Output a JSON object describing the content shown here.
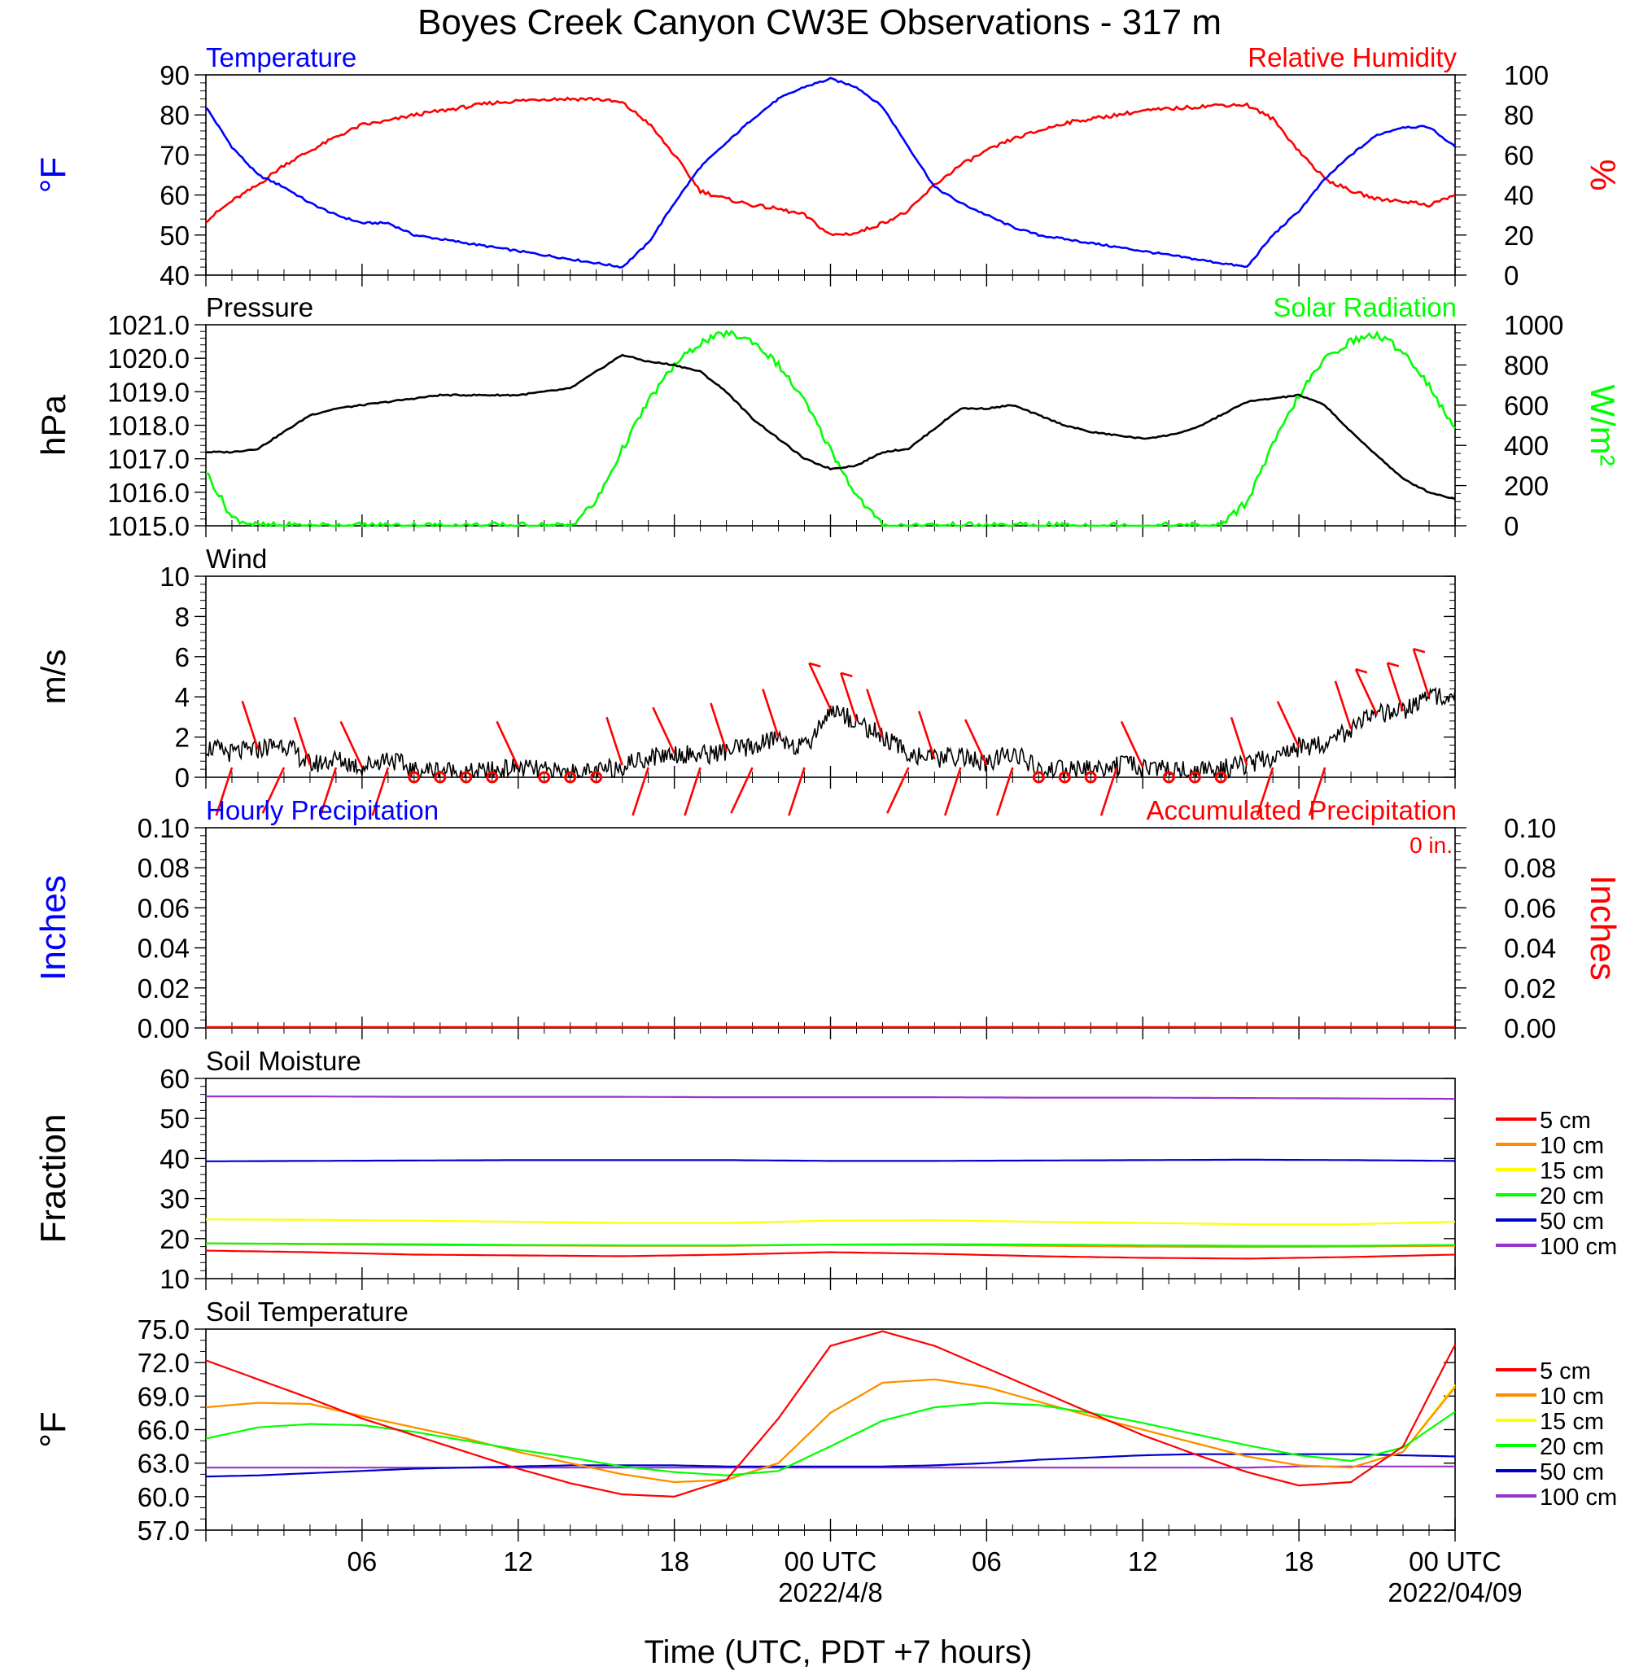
{
  "title": "Boyes Creek Canyon CW3E Observations - 317 m",
  "xlabel": "Time (UTC, PDT +7 hours)",
  "x_ticks": [
    "06",
    "12",
    "18",
    "00 UTC",
    "06",
    "12",
    "18",
    "00 UTC"
  ],
  "x_dates": [
    "2022/4/8",
    "2022/04/09"
  ],
  "colors": {
    "temperature": "#0000ff",
    "humidity": "#ff0000",
    "pressure": "#000000",
    "solar": "#00ff00",
    "wind": "#000000",
    "barbs": "#ff0000"
  },
  "chart_data": [
    {
      "type": "line",
      "panel": "temperature-humidity",
      "left_title": "Temperature",
      "right_title": "Relative Humidity",
      "left_unit": "°F",
      "right_unit": "%",
      "ylim_left": [
        40,
        90
      ],
      "ylim_right": [
        0,
        100
      ],
      "yticks_left": [
        "90",
        "80",
        "70",
        "60",
        "50",
        "40"
      ],
      "yticks_right": [
        "100",
        "80",
        "60",
        "40",
        "20",
        "0"
      ],
      "x_hours": [
        0,
        1,
        2,
        3,
        4,
        5,
        6,
        7,
        8,
        9,
        10,
        11,
        12,
        13,
        14,
        15,
        16,
        17,
        18,
        19,
        20,
        21,
        22,
        23,
        24,
        25,
        26,
        27,
        28,
        29,
        30,
        31,
        32,
        33,
        34,
        35,
        36,
        37,
        38,
        39,
        40,
        41,
        42,
        43,
        44,
        45,
        46,
        47,
        48
      ],
      "series": [
        {
          "name": "Temperature",
          "values": [
            82,
            72,
            65,
            62,
            58,
            55,
            53,
            53,
            50,
            49,
            48,
            47,
            46,
            45,
            44,
            43,
            42,
            48,
            58,
            67,
            73,
            79,
            84,
            87,
            89,
            87,
            82,
            72,
            62,
            58,
            55,
            52,
            50,
            49,
            48,
            47,
            46,
            45,
            44,
            43,
            42,
            50,
            56,
            64,
            70,
            75,
            77,
            77,
            72
          ]
        },
        {
          "name": "Relative Humidity",
          "values": [
            27,
            37,
            45,
            55,
            62,
            69,
            75,
            77,
            80,
            82,
            84,
            86,
            87,
            88,
            88,
            88,
            86,
            76,
            60,
            42,
            38,
            35,
            33,
            30,
            20,
            21,
            26,
            32,
            45,
            55,
            62,
            68,
            72,
            76,
            78,
            80,
            82,
            83,
            84,
            85,
            85,
            78,
            62,
            48,
            42,
            38,
            37,
            35,
            40
          ]
        }
      ]
    },
    {
      "type": "line",
      "panel": "pressure-solar",
      "left_title": "Pressure",
      "right_title": "Solar Radiation",
      "left_unit": "hPa",
      "right_unit": "W/m²",
      "ylim_left": [
        1015.0,
        1021.0
      ],
      "ylim_right": [
        0,
        1000
      ],
      "yticks_left": [
        "1021.0",
        "1020.0",
        "1019.0",
        "1018.0",
        "1017.0",
        "1016.0",
        "1015.0"
      ],
      "yticks_right": [
        "1000",
        "800",
        "600",
        "400",
        "200",
        "0"
      ],
      "x_hours": [
        0,
        1,
        2,
        3,
        4,
        5,
        6,
        7,
        8,
        9,
        10,
        11,
        12,
        13,
        14,
        15,
        16,
        17,
        18,
        19,
        20,
        21,
        22,
        23,
        24,
        25,
        26,
        27,
        28,
        29,
        30,
        31,
        32,
        33,
        34,
        35,
        36,
        37,
        38,
        39,
        40,
        41,
        42,
        43,
        44,
        45,
        46,
        47,
        48
      ],
      "series": [
        {
          "name": "Pressure",
          "values": [
            1017.2,
            1017.2,
            1017.3,
            1017.8,
            1018.3,
            1018.5,
            1018.6,
            1018.7,
            1018.8,
            1018.9,
            1018.9,
            1018.9,
            1018.9,
            1019.0,
            1019.1,
            1019.6,
            1020.1,
            1019.9,
            1019.8,
            1019.6,
            1019.0,
            1018.2,
            1017.6,
            1017.0,
            1016.7,
            1016.8,
            1017.2,
            1017.3,
            1017.9,
            1018.5,
            1018.5,
            1018.6,
            1018.3,
            1018.0,
            1017.8,
            1017.7,
            1017.6,
            1017.7,
            1017.9,
            1018.3,
            1018.7,
            1018.8,
            1018.9,
            1018.6,
            1017.8,
            1017.1,
            1016.4,
            1016.0,
            1015.8
          ]
        },
        {
          "name": "Solar Radiation",
          "values": [
            270,
            40,
            0,
            0,
            0,
            0,
            0,
            0,
            0,
            0,
            0,
            0,
            0,
            0,
            0,
            120,
            380,
            620,
            800,
            910,
            960,
            920,
            800,
            620,
            380,
            150,
            0,
            0,
            0,
            0,
            0,
            0,
            0,
            0,
            0,
            0,
            0,
            0,
            0,
            0,
            120,
            400,
            650,
            830,
            920,
            950,
            870,
            700,
            470
          ]
        }
      ]
    },
    {
      "type": "line",
      "panel": "wind",
      "left_title": "Wind",
      "left_unit": "m/s",
      "ylim": [
        0,
        10
      ],
      "yticks": [
        "10",
        "8",
        "6",
        "4",
        "2",
        "0"
      ],
      "x_hours": [
        0,
        1,
        2,
        3,
        4,
        5,
        6,
        7,
        8,
        9,
        10,
        11,
        12,
        13,
        14,
        15,
        16,
        17,
        18,
        19,
        20,
        21,
        22,
        23,
        24,
        25,
        26,
        27,
        28,
        29,
        30,
        31,
        32,
        33,
        34,
        35,
        36,
        37,
        38,
        39,
        40,
        41,
        42,
        43,
        44,
        45,
        46,
        47,
        48
      ],
      "series": [
        {
          "name": "Wind speed",
          "values": [
            1.5,
            1.2,
            1.4,
            1.7,
            0.6,
            0.9,
            0.5,
            1.0,
            0.3,
            0.4,
            0.2,
            0.3,
            0.5,
            0.3,
            0.2,
            0.2,
            0.6,
            1.0,
            1.2,
            1.1,
            1.3,
            1.5,
            2.0,
            1.4,
            3.4,
            2.8,
            2.0,
            1.2,
            0.9,
            1.1,
            0.6,
            1.3,
            0.3,
            0.4,
            0.4,
            0.6,
            0.5,
            0.4,
            0.3,
            0.4,
            0.6,
            1.0,
            1.5,
            1.7,
            2.4,
            3.1,
            3.3,
            4.0,
            4.2
          ]
        }
      ]
    },
    {
      "type": "line",
      "panel": "precipitation",
      "left_title": "Hourly Precipitation",
      "right_title": "Accumulated Precipitation",
      "annotation": "0 in.",
      "left_unit": "Inches",
      "right_unit": "Inches",
      "ylim": [
        0,
        0.1
      ],
      "yticks": [
        "0.10",
        "0.08",
        "0.06",
        "0.04",
        "0.02",
        "0.00"
      ],
      "series": [
        {
          "name": "Hourly Precipitation",
          "values": [
            0,
            0
          ]
        },
        {
          "name": "Accumulated Precipitation",
          "values": [
            0,
            0
          ]
        }
      ]
    },
    {
      "type": "line",
      "panel": "soil-moisture",
      "left_title": "Soil Moisture",
      "left_unit": "Fraction",
      "ylim": [
        10,
        60
      ],
      "yticks": [
        "60",
        "50",
        "40",
        "30",
        "20",
        "10"
      ],
      "x_hours": [
        0,
        4,
        8,
        12,
        16,
        20,
        24,
        28,
        32,
        36,
        40,
        44,
        48
      ],
      "series": [
        {
          "name": "5 cm",
          "color": "#ff0000",
          "values": [
            17.0,
            16.6,
            16.0,
            15.8,
            15.6,
            16.0,
            16.6,
            16.2,
            15.6,
            15.2,
            15.0,
            15.4,
            16.0
          ]
        },
        {
          "name": "10 cm",
          "color": "#ff8c00",
          "values": [
            18.8,
            18.6,
            18.4,
            18.3,
            18.2,
            18.2,
            18.5,
            18.4,
            18.2,
            18.0,
            17.9,
            18.0,
            18.2
          ]
        },
        {
          "name": "15 cm",
          "color": "#ffff00",
          "values": [
            24.8,
            24.7,
            24.5,
            24.2,
            23.9,
            23.9,
            24.5,
            24.6,
            24.2,
            23.9,
            23.6,
            23.6,
            24.2
          ]
        },
        {
          "name": "20 cm",
          "color": "#00ff00",
          "values": [
            18.8,
            18.7,
            18.6,
            18.4,
            18.3,
            18.3,
            18.5,
            18.6,
            18.5,
            18.3,
            18.2,
            18.2,
            18.4
          ]
        },
        {
          "name": "50 cm",
          "color": "#0000cd",
          "values": [
            39.3,
            39.4,
            39.5,
            39.6,
            39.6,
            39.6,
            39.4,
            39.4,
            39.5,
            39.6,
            39.7,
            39.6,
            39.4
          ]
        },
        {
          "name": "100 cm",
          "color": "#9932cc",
          "values": [
            55.5,
            55.5,
            55.4,
            55.4,
            55.4,
            55.3,
            55.3,
            55.3,
            55.2,
            55.2,
            55.1,
            55.0,
            54.9
          ]
        }
      ],
      "legend": [
        "5 cm",
        "10 cm",
        "15 cm",
        "20 cm",
        "50 cm",
        "100 cm"
      ]
    },
    {
      "type": "line",
      "panel": "soil-temperature",
      "left_title": "Soil Temperature",
      "left_unit": "°F",
      "ylim": [
        57.0,
        75.0
      ],
      "yticks": [
        "75.0",
        "72.0",
        "69.0",
        "66.0",
        "63.0",
        "60.0",
        "57.0"
      ],
      "x_hours": [
        0,
        2,
        4,
        6,
        8,
        10,
        12,
        14,
        16,
        18,
        20,
        22,
        24,
        26,
        28,
        30,
        32,
        34,
        36,
        38,
        40,
        42,
        44,
        46,
        48
      ],
      "series": [
        {
          "name": "5 cm",
          "color": "#ff0000",
          "values": [
            72.2,
            70.5,
            68.8,
            67.0,
            65.5,
            64.0,
            62.5,
            61.2,
            60.2,
            60.0,
            61.5,
            67.0,
            73.5,
            74.8,
            73.5,
            71.5,
            69.5,
            67.5,
            65.5,
            63.8,
            62.2,
            61.0,
            61.3,
            64.5,
            73.6
          ]
        },
        {
          "name": "10 cm",
          "color": "#ff8c00",
          "values": [
            68.0,
            68.4,
            68.3,
            67.2,
            66.2,
            65.2,
            64.0,
            63.0,
            62.0,
            61.3,
            61.5,
            63.0,
            67.5,
            70.2,
            70.5,
            69.8,
            68.5,
            67.2,
            66.0,
            64.8,
            63.6,
            62.8,
            62.6,
            64.0,
            69.8
          ]
        },
        {
          "name": "15 cm",
          "color": "#ffff00",
          "values": [
            68.0,
            68.4,
            68.3,
            67.2,
            66.2,
            65.2,
            64.0,
            63.0,
            62.0,
            61.3,
            61.5,
            63.0,
            67.5,
            70.2,
            70.5,
            69.8,
            68.5,
            67.2,
            66.0,
            64.8,
            63.6,
            62.8,
            62.6,
            64.0,
            70.0
          ]
        },
        {
          "name": "20 cm",
          "color": "#00ff00",
          "values": [
            65.2,
            66.2,
            66.5,
            66.4,
            65.8,
            65.0,
            64.2,
            63.5,
            62.7,
            62.2,
            61.9,
            62.3,
            64.5,
            66.8,
            68.0,
            68.4,
            68.2,
            67.5,
            66.6,
            65.6,
            64.6,
            63.7,
            63.2,
            64.4,
            67.6
          ]
        },
        {
          "name": "50 cm",
          "color": "#0000cd",
          "values": [
            61.8,
            61.9,
            62.1,
            62.3,
            62.5,
            62.6,
            62.7,
            62.8,
            62.8,
            62.8,
            62.7,
            62.7,
            62.7,
            62.7,
            62.8,
            63.0,
            63.3,
            63.5,
            63.7,
            63.8,
            63.8,
            63.8,
            63.8,
            63.7,
            63.6
          ]
        },
        {
          "name": "100 cm",
          "color": "#9932cc",
          "values": [
            62.6,
            62.6,
            62.6,
            62.6,
            62.6,
            62.6,
            62.6,
            62.6,
            62.6,
            62.6,
            62.6,
            62.6,
            62.6,
            62.6,
            62.6,
            62.6,
            62.6,
            62.6,
            62.6,
            62.6,
            62.6,
            62.7,
            62.7,
            62.7,
            62.7
          ]
        }
      ],
      "legend": [
        "5 cm",
        "10 cm",
        "15 cm",
        "20 cm",
        "50 cm",
        "100 cm"
      ]
    }
  ]
}
